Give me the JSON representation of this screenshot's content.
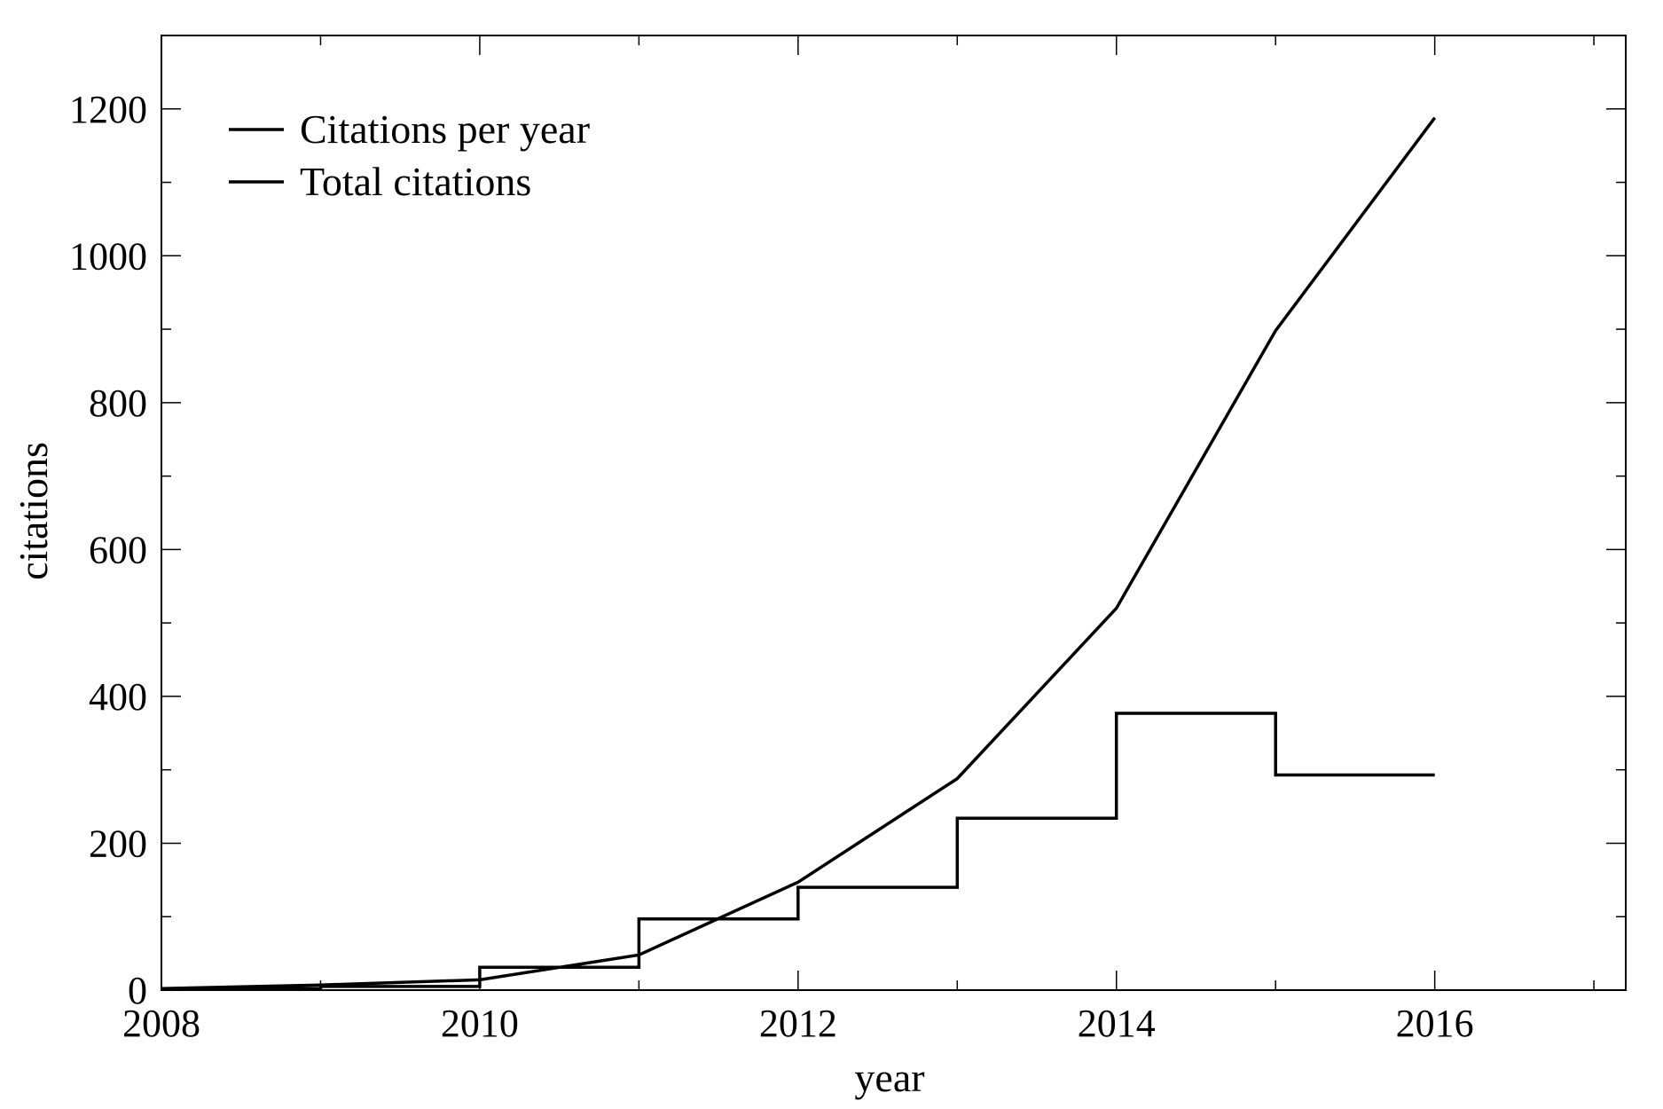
{
  "chart_data": {
    "type": "line",
    "xlabel": "year",
    "ylabel": "citations",
    "xlim": [
      2008,
      2017.2
    ],
    "ylim": [
      0,
      1300
    ],
    "x_ticks": [
      2008,
      2010,
      2012,
      2014,
      2016
    ],
    "x_minor_ticks": [
      2009,
      2011,
      2013,
      2015,
      2017
    ],
    "y_ticks": [
      0,
      200,
      400,
      600,
      800,
      1000,
      1200
    ],
    "y_minor_ticks": [
      100,
      300,
      500,
      700,
      900,
      1100,
      1300
    ],
    "grid": false,
    "legend_position": "top-left",
    "colors": {
      "line": "#000000",
      "frame": "#000000"
    },
    "series": [
      {
        "name": "Citations per year",
        "style": "step",
        "x": [
          2008,
          2009,
          2010,
          2011,
          2012,
          2013,
          2014,
          2015,
          2016
        ],
        "y": [
          2,
          5,
          31,
          97,
          140,
          234,
          377,
          293,
          293
        ]
      },
      {
        "name": "Total citations",
        "style": "line",
        "x": [
          2008,
          2009,
          2010,
          2011,
          2012,
          2013,
          2014,
          2015,
          2016
        ],
        "y": [
          2,
          7,
          14,
          48,
          147,
          288,
          520,
          898,
          1188
        ]
      }
    ]
  }
}
